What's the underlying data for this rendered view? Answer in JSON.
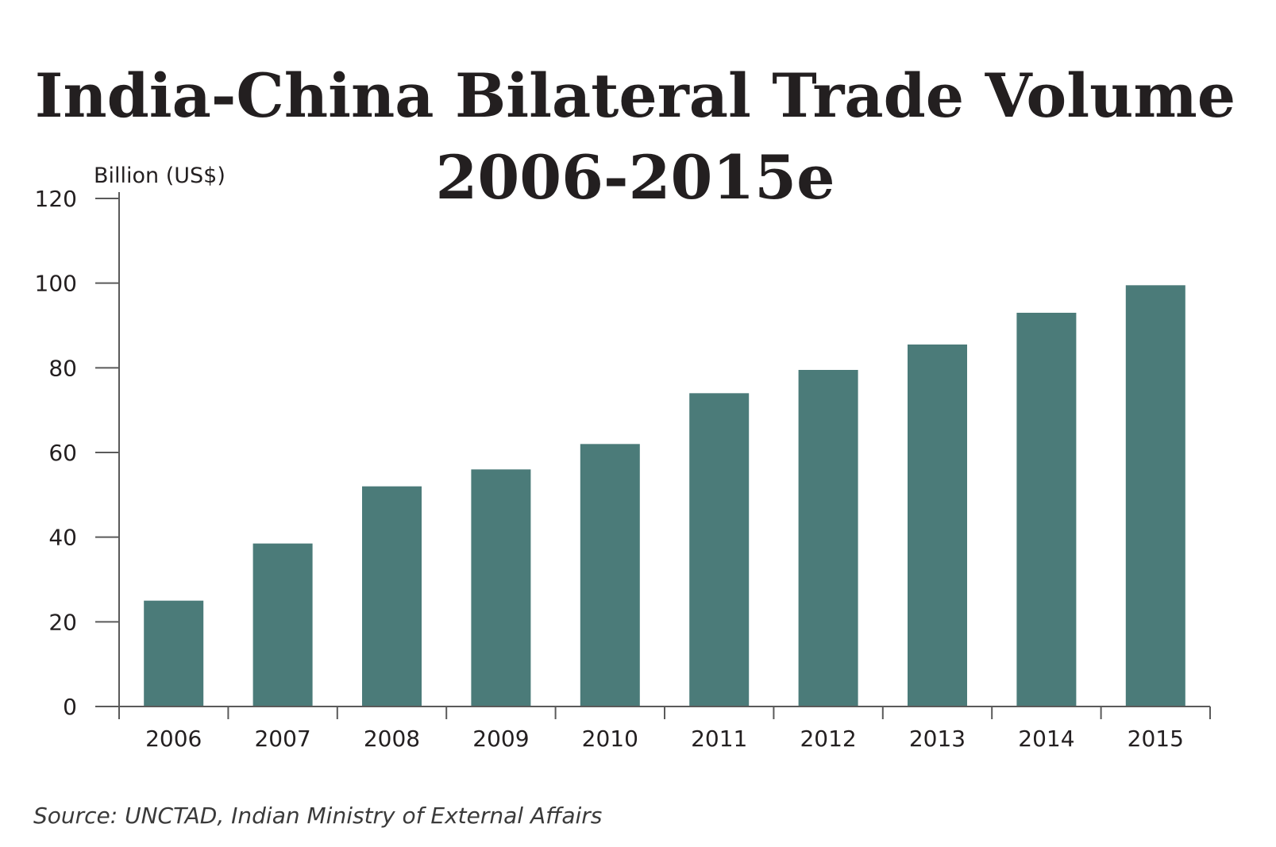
{
  "chart_data": {
    "type": "bar",
    "title": "India-China Bilateral Trade Volume",
    "subtitle": "2006-2015e",
    "ylabel": "Billion (US$)",
    "xlabel": "",
    "categories": [
      "2006",
      "2007",
      "2008",
      "2009",
      "2010",
      "2011",
      "2012",
      "2013",
      "2014",
      "2015"
    ],
    "series": [
      {
        "values": [
          25,
          38.5,
          52,
          56,
          62,
          74,
          79.5,
          85.5,
          93,
          99.5
        ]
      }
    ],
    "ylim": [
      0,
      120
    ],
    "yticks": [
      0,
      20,
      40,
      60,
      80,
      100,
      120
    ],
    "bar_color": "#4b7b79",
    "grid": false,
    "legend": "none",
    "source": "Source: UNCTAD, Indian Ministry of External Affairs"
  }
}
